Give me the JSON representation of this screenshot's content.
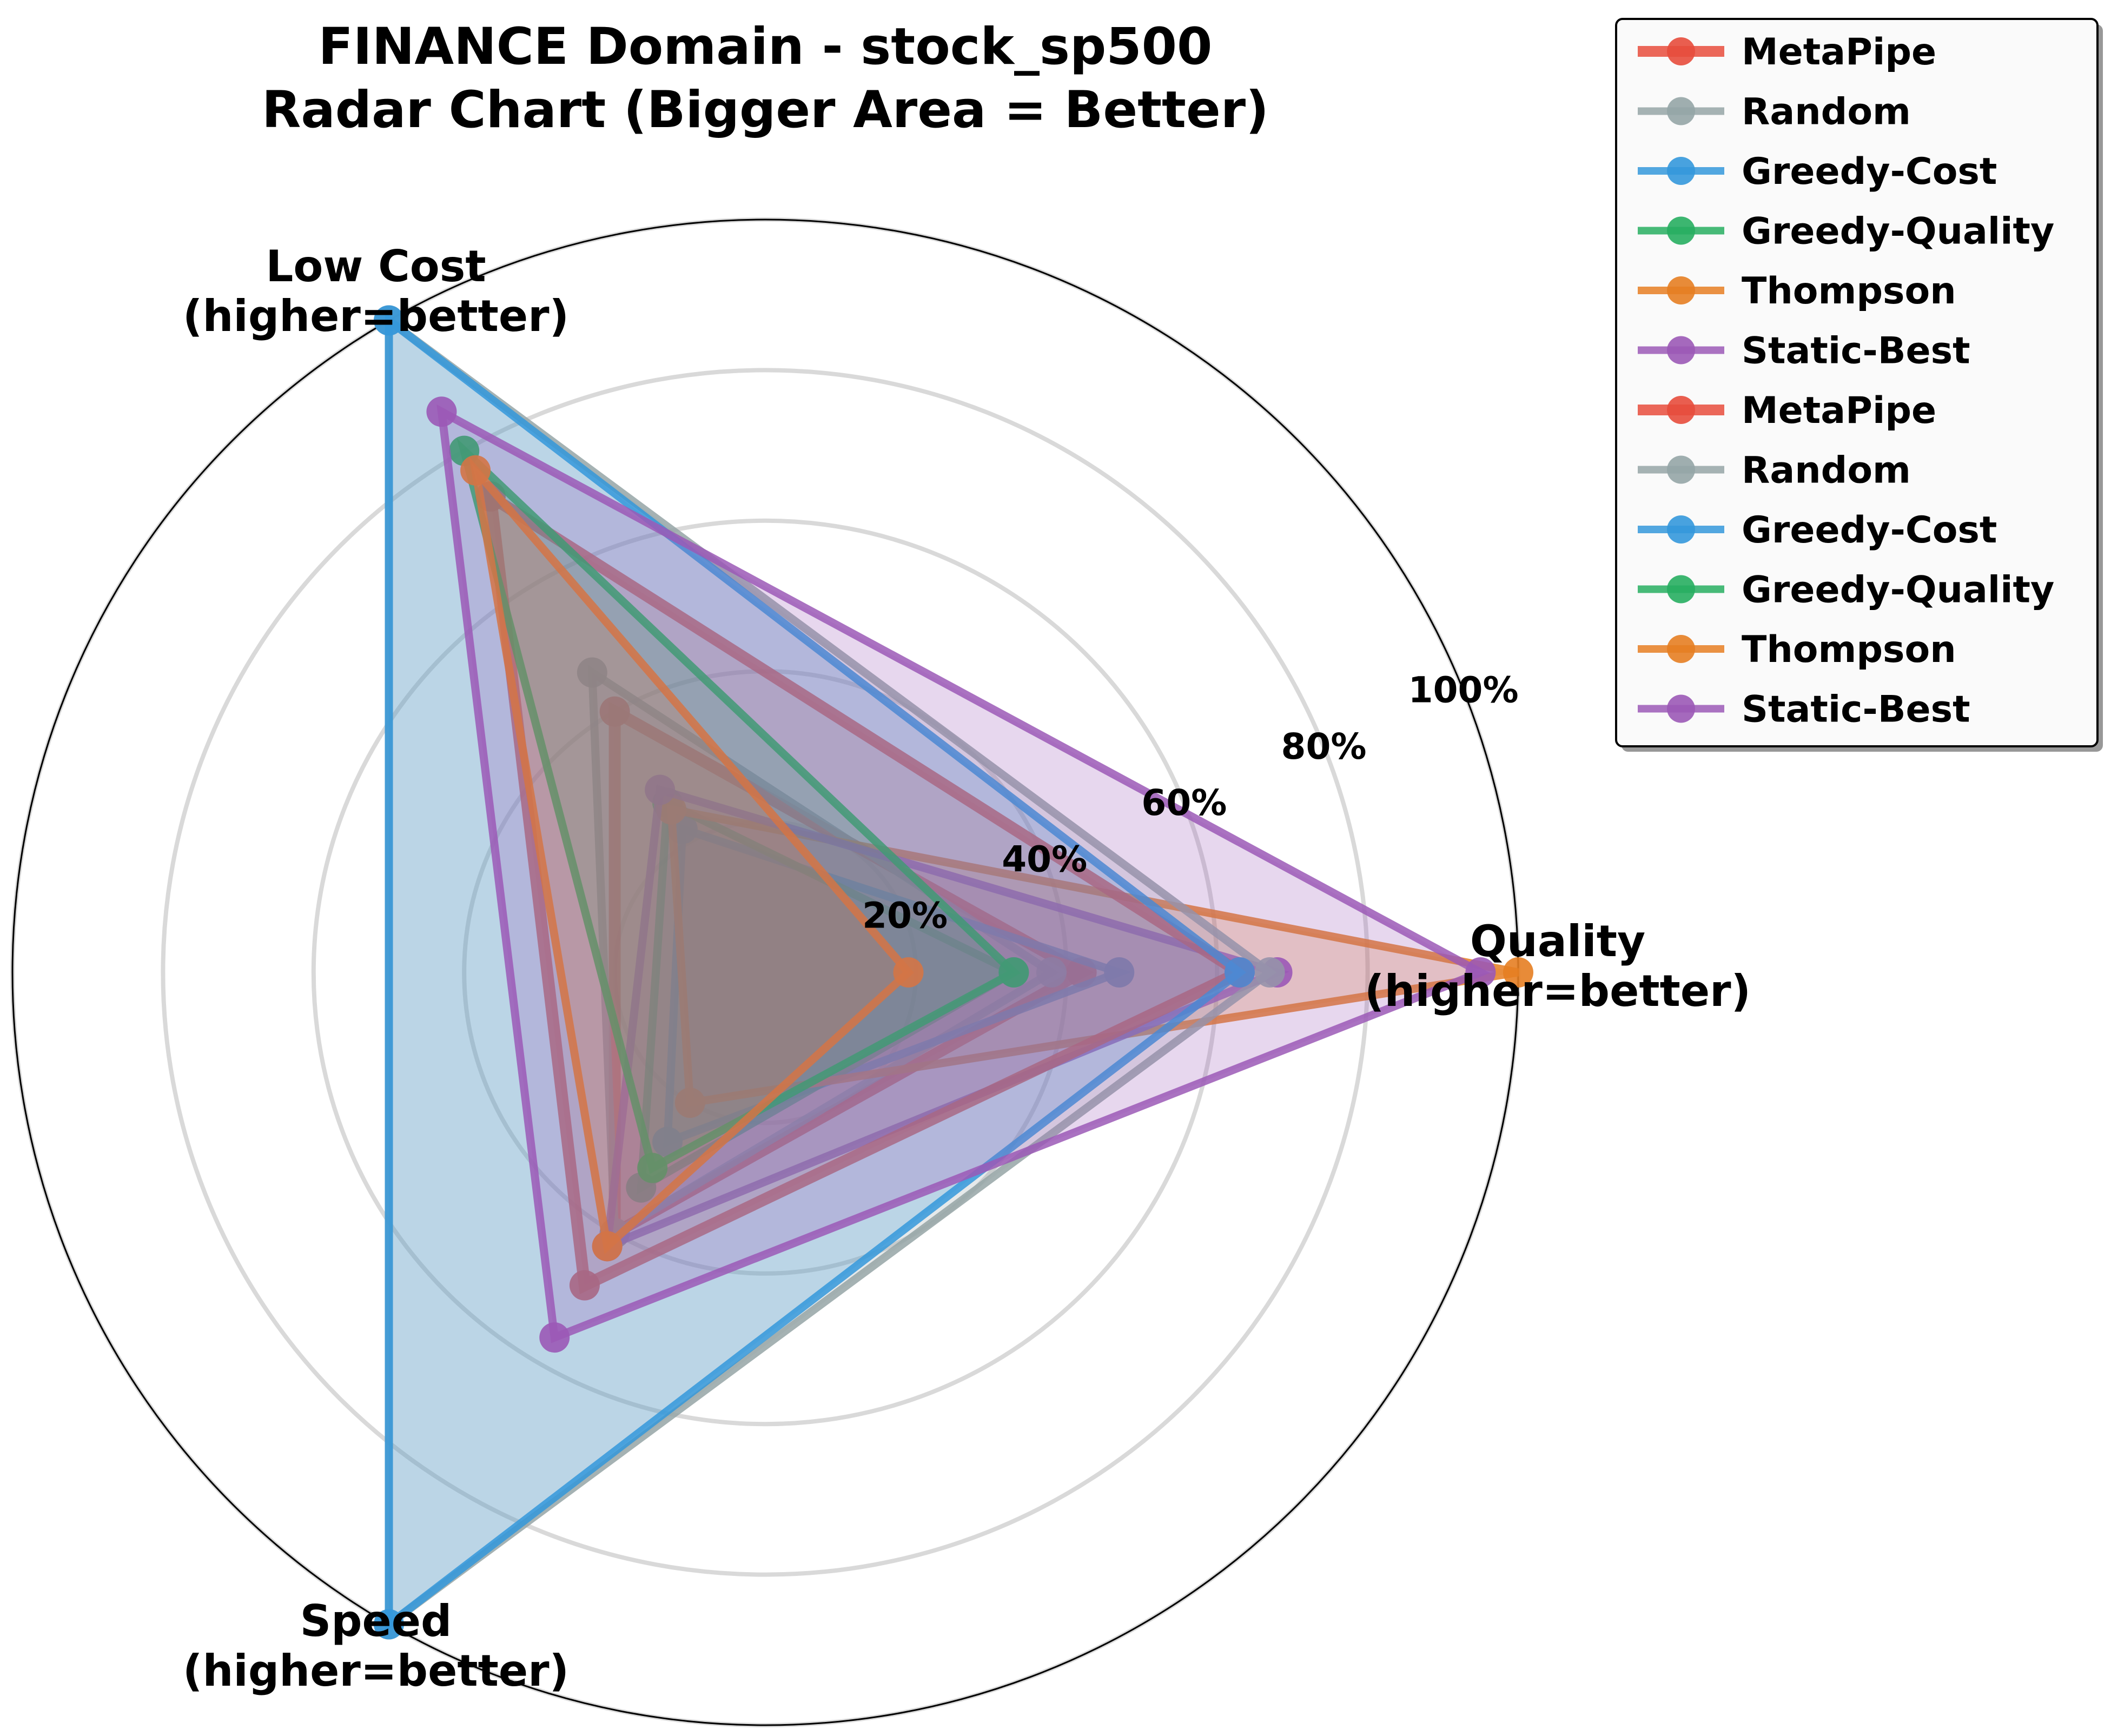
{
  "chart_data": {
    "type": "radar",
    "title": [
      "FINANCE Domain - stock_sp500",
      "Radar Chart (Bigger Area = Better)"
    ],
    "axes": [
      {
        "label": [
          "Quality",
          "(higher=better)"
        ]
      },
      {
        "label": [
          "Low Cost",
          "(higher=better)"
        ]
      },
      {
        "label": [
          "Speed",
          "(higher=better)"
        ]
      }
    ],
    "radial_ticks": [
      20,
      40,
      60,
      80,
      100
    ],
    "radial_tick_labels": [
      "20%",
      "40%",
      "60%",
      "80%",
      "100%"
    ],
    "rlim": [
      0,
      100
    ],
    "grid": true,
    "legend_position": "top-right",
    "series": [
      {
        "name": "MetaPipe",
        "color": "#e74c3c",
        "values": [
          42,
          40,
          40
        ],
        "line_weight": "thick"
      },
      {
        "name": "Random",
        "color": "#95a5a6",
        "values": [
          38,
          46,
          40
        ],
        "line_weight": "normal"
      },
      {
        "name": "Greedy-Cost",
        "color": "#3498db",
        "values": [
          47,
          22,
          26
        ],
        "line_weight": "normal"
      },
      {
        "name": "Greedy-Quality",
        "color": "#27ae60",
        "values": [
          33,
          26,
          33
        ],
        "line_weight": "normal"
      },
      {
        "name": "Thompson",
        "color": "#e67e22",
        "values": [
          100,
          25,
          20
        ],
        "line_weight": "normal"
      },
      {
        "name": "Static-Best",
        "color": "#9b59b6",
        "values": [
          68,
          28,
          42
        ],
        "line_weight": "normal"
      },
      {
        "name": "MetaPipe",
        "color": "#e74c3c",
        "values": [
          63,
          73,
          48
        ],
        "line_weight": "thick"
      },
      {
        "name": "Random",
        "color": "#95a5a6",
        "values": [
          67,
          100,
          100
        ],
        "line_weight": "normal"
      },
      {
        "name": "Greedy-Cost",
        "color": "#3498db",
        "values": [
          63,
          100,
          100
        ],
        "line_weight": "normal"
      },
      {
        "name": "Greedy-Quality",
        "color": "#27ae60",
        "values": [
          33,
          80,
          30
        ],
        "line_weight": "normal"
      },
      {
        "name": "Thompson",
        "color": "#e67e22",
        "values": [
          19,
          77,
          42
        ],
        "line_weight": "normal"
      },
      {
        "name": "Static-Best",
        "color": "#9b59b6",
        "values": [
          95,
          86,
          56
        ],
        "line_weight": "normal"
      }
    ]
  }
}
